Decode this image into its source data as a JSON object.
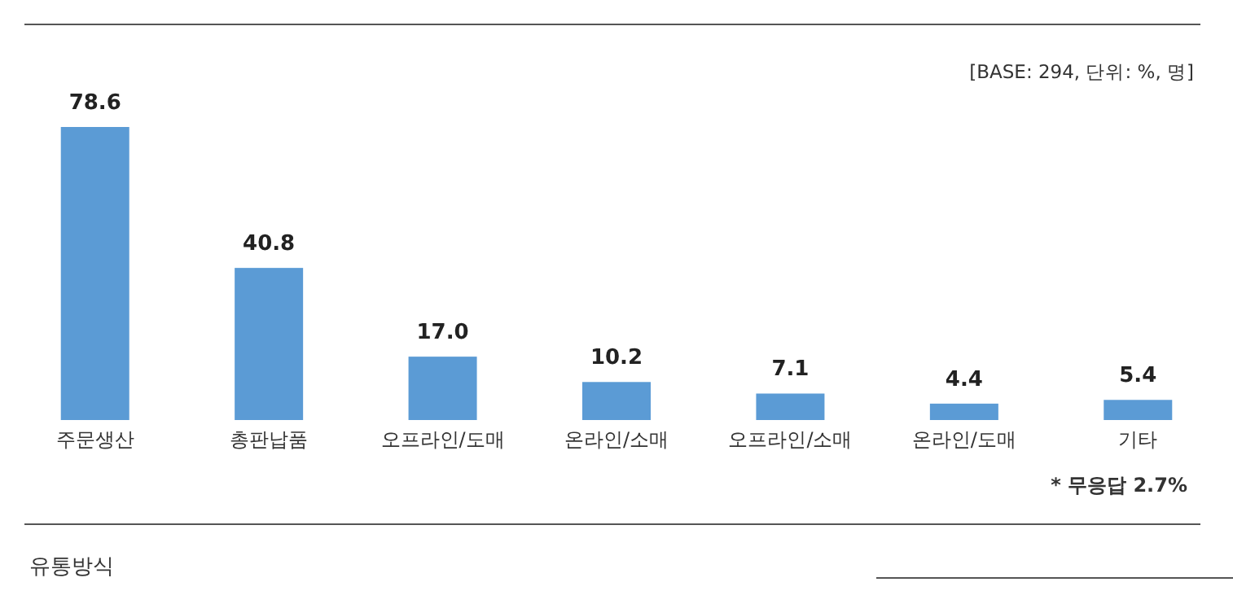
{
  "chart_data": {
    "type": "bar",
    "categories": [
      "주문생산",
      "총판납품",
      "오프라인/도매",
      "온라인/소매",
      "오프라인/소매",
      "온라인/도매",
      "기타"
    ],
    "values": [
      78.6,
      40.8,
      17.0,
      10.2,
      7.1,
      4.4,
      5.4
    ],
    "value_labels": [
      "78.6",
      "40.8",
      "17.0",
      "10.2",
      "7.1",
      "4.4",
      "5.4"
    ],
    "color": "#5b9bd5",
    "annotations": [
      "[BASE: 294, 단위: %, 명]",
      "* 무응답 2.7%",
      "유통방식"
    ]
  }
}
